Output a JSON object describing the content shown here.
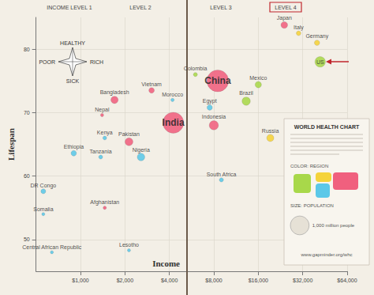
{
  "chart_data": {
    "type": "scatter",
    "header_labels": [
      "INCOME LEVEL 1",
      "LEVEL 2",
      "LEVEL 3",
      "LEVEL 4"
    ],
    "compass": {
      "top": "HEALTHY",
      "left": "POOR",
      "right": "RICH",
      "bottom": "SICK"
    },
    "x_label": "Income",
    "y_label": "Lifespan",
    "log": "x",
    "grid": true,
    "xlim": [
      500,
      64000
    ],
    "xticks": [
      {
        "value": 1000,
        "label": "$1,000"
      },
      {
        "value": 2000,
        "label": "$2,000"
      },
      {
        "value": 4000,
        "label": "$4,000"
      },
      {
        "value": 8000,
        "label": "$8,000"
      },
      {
        "value": 16000,
        "label": "$16,000"
      },
      {
        "value": 32000,
        "label": "$32,000"
      },
      {
        "value": 64000,
        "label": "$64,000"
      }
    ],
    "ylim": [
      45,
      85
    ],
    "yticks": [
      50,
      60,
      70,
      80
    ],
    "point_labels": [
      "DR Congo",
      "Somalia",
      "Central African Republic",
      "Lesotho",
      "Afghanistan",
      "Ethiopia",
      "Tanzania",
      "Nigeria",
      "Kenya",
      "Pakistan",
      "Nepal",
      "Bangladesh",
      "Vietnam",
      "Morocco",
      "India",
      "China",
      "Colombia",
      "Egypt",
      "Indonesia",
      "Brazil",
      "Mexico",
      "Russia",
      "South Africa",
      "Japan",
      "Italy",
      "Germany",
      "US"
    ],
    "x": [
      560,
      560,
      640,
      2130,
      1460,
      900,
      1370,
      2570,
      1460,
      2130,
      1400,
      1700,
      3030,
      4200,
      4250,
      8500,
      6000,
      7500,
      8000,
      13250,
      16000,
      19300,
      9000,
      24000,
      30000,
      40000,
      42000
    ],
    "values": [
      57.6,
      54,
      48,
      48.3,
      55,
      63.6,
      63,
      63,
      66,
      65.4,
      69.6,
      72,
      73.5,
      72,
      68.4,
      75,
      76,
      70.8,
      68,
      71.8,
      74.4,
      66,
      59.4,
      83.8,
      82.5,
      81,
      78
    ],
    "sizes": [
      68,
      9.5,
      4.5,
      2.2,
      32,
      85,
      46,
      162,
      42,
      177,
      30,
      150,
      88,
      32,
      1240,
      1345,
      47,
      83,
      242,
      197,
      115,
      143,
      50,
      127,
      61,
      82,
      312
    ],
    "colors": [
      "#5bc8e8",
      "#5bc8e8",
      "#5bc8e8",
      "#5bc8e8",
      "#f0607e",
      "#5bc8e8",
      "#5bc8e8",
      "#5bc8e8",
      "#5bc8e8",
      "#f0607e",
      "#f0607e",
      "#f0607e",
      "#f0607e",
      "#5bc8e8",
      "#f0607e",
      "#f0607e",
      "#a8d84a",
      "#5bc8e8",
      "#f0607e",
      "#a8d84a",
      "#a8d84a",
      "#f5d33a",
      "#5bc8e8",
      "#f0607e",
      "#f5d33a",
      "#f5d33a",
      "#a8d84a"
    ],
    "key_box": {
      "title": "WORLD HEALTH CHART",
      "color_label": "COLOR: REGION",
      "size_label": "SIZE: POPULATION",
      "size_key": {
        "value": 1000,
        "label": "1,000 million people"
      },
      "url": "www.gapminder.org/whc"
    }
  }
}
